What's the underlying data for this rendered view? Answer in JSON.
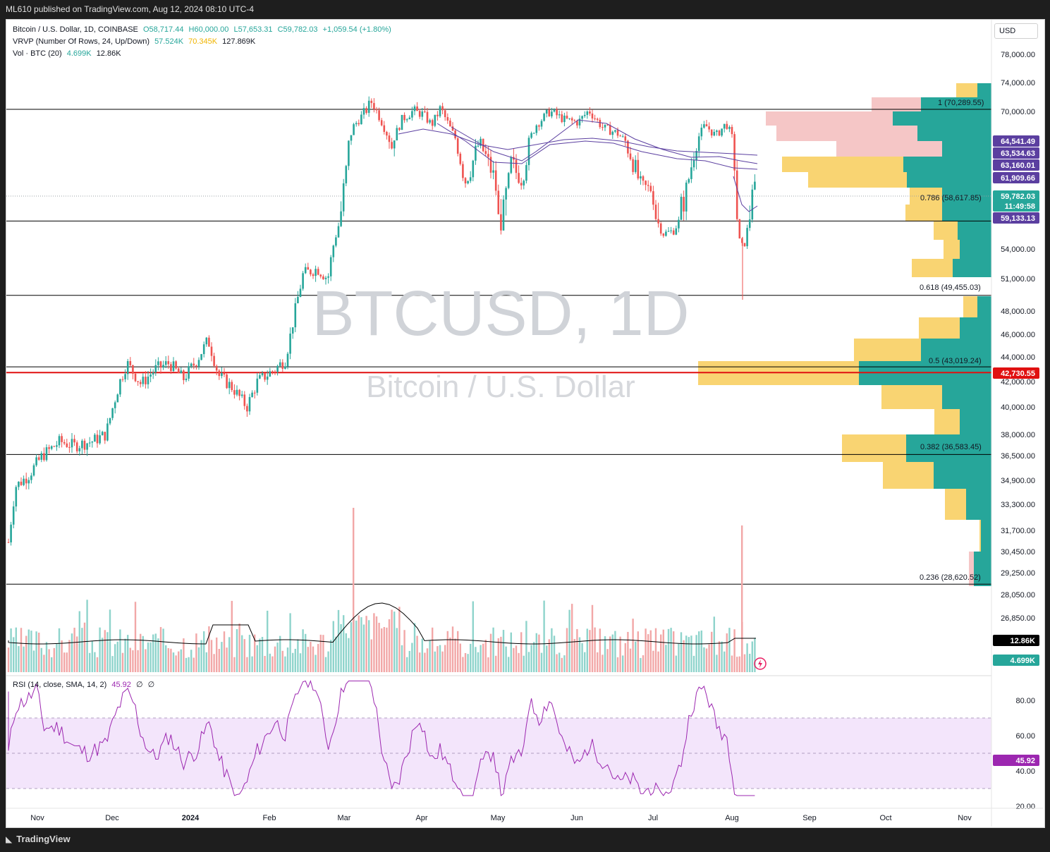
{
  "header": {
    "text": "ML610 published on TradingView.com, Aug 12, 2024 08:10 UTC-4"
  },
  "footer": {
    "brand": "TradingView"
  },
  "currency_button": "USD",
  "legend": {
    "symbol": "Bitcoin / U.S. Dollar, 1D, COINBASE",
    "ohlc": {
      "o": "O58,717.44",
      "h": "H60,000.00",
      "l": "L57,653.31",
      "c": "C59,782.03",
      "chg": "+1,059.54 (+1.80%)"
    },
    "vrvp": {
      "label": "VRVP (Number Of Rows, 24, Up/Down)",
      "up": "57.524K",
      "down": "70.345K",
      "total": "127.869K"
    },
    "vol": {
      "label": "Vol · BTC (20)",
      "v1": "4.699K",
      "v2": "12.86K"
    },
    "rsi": {
      "label": "RSI (14, close, SMA, 14, 2)",
      "value": "45.92",
      "extra1": "∅",
      "extra2": "∅"
    }
  },
  "watermark": {
    "line1": "BTCUSD, 1D",
    "line2": "Bitcoin / U.S. Dollar"
  },
  "colors": {
    "up": "#26a69a",
    "down": "#ef5350",
    "vp_up": "#26a69a",
    "vp_down": "#f5c6c6",
    "vp_poc_fill": "#f9d26a",
    "ma": "#5b3fa0",
    "rsi": "#9c27b0",
    "rsi_band": "#f3e5fb"
  },
  "chart_data": {
    "type": "candlestick",
    "title": "Bitcoin / U.S. Dollar, 1D, COINBASE",
    "y_ticks": [
      "78,000.00",
      "74,000.00",
      "70,000.00",
      "54,000.00",
      "51,000.00",
      "48,000.00",
      "46,000.00",
      "44,000.00",
      "42,000.00",
      "40,000.00",
      "38,000.00",
      "36,500.00",
      "34,900.00",
      "33,300.00",
      "31,700.00",
      "30,450.00",
      "29,250.00",
      "28,050.00",
      "26,850.00"
    ],
    "x_ticks": [
      "Nov",
      "Dec",
      "2024",
      "Feb",
      "Mar",
      "Apr",
      "May",
      "Jun",
      "Jul",
      "Aug",
      "Sep",
      "Oct",
      "Nov"
    ],
    "price_tags": [
      {
        "text": "64,541.49",
        "color": "#5b3fa0",
        "value": 64541.49
      },
      {
        "text": "63,534.63",
        "color": "#5b3fa0",
        "value": 63534.63
      },
      {
        "text": "63,160.01",
        "color": "#5b3fa0",
        "value": 63160.01
      },
      {
        "text": "61,909.66",
        "color": "#5b3fa0",
        "value": 61909.66
      },
      {
        "text": "59,782.03",
        "color": "#26a69a",
        "value": 59782.03
      },
      {
        "text": "11:49:58",
        "color": "#26a69a",
        "value": null
      },
      {
        "text": "59,133.13",
        "color": "#5b3fa0",
        "value": 59133.13
      },
      {
        "text": "42,730.55",
        "color": "#e01010",
        "value": 42730.55
      },
      {
        "text": "12.86K",
        "color": "#000000",
        "value": null
      },
      {
        "text": "4.699K",
        "color": "#26a69a",
        "value": null
      },
      {
        "text": "45.92",
        "color": "#9c27b0",
        "value": 45.92
      }
    ],
    "fib_levels": [
      {
        "label": "1 (70,289.55)",
        "value": 70289.55
      },
      {
        "label": "0.786 (58,617.85)",
        "value": 58617.85
      },
      {
        "label": "0.618 (49,455.03)",
        "value": 49455.03
      },
      {
        "label": "0.5 (43,019.24)",
        "value": 43019.24
      },
      {
        "label": "0.382 (36,583.45)",
        "value": 36583.45
      },
      {
        "label": "0.236 (28,620.52)",
        "value": 28620.52
      }
    ],
    "rsi_ticks": [
      "80.00",
      "60.00",
      "40.00",
      "20.00"
    ],
    "candles_monthly_approx": [
      {
        "month": "Nov",
        "close": 37000
      },
      {
        "month": "Dec",
        "close": 42500
      },
      {
        "month": "Jan",
        "close": 42500
      },
      {
        "month": "Feb",
        "close": 61000
      },
      {
        "month": "Mar",
        "close": 71000
      },
      {
        "month": "Apr",
        "close": 60500
      },
      {
        "month": "May",
        "close": 67500
      },
      {
        "month": "Jun",
        "close": 62700
      },
      {
        "month": "Jul",
        "close": 64600
      },
      {
        "month": "Aug",
        "close": 59782
      }
    ]
  }
}
